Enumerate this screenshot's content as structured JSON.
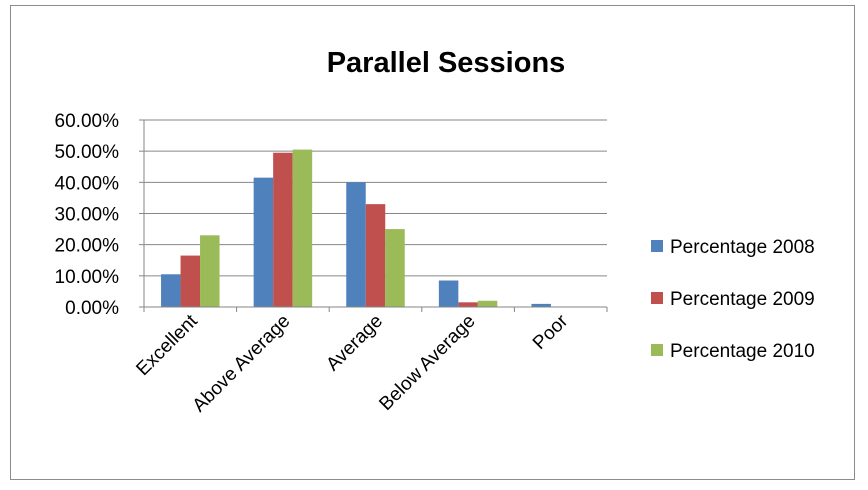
{
  "chart_data": {
    "type": "bar",
    "title": "Parallel Sessions",
    "categories": [
      "Excellent",
      "Above Average",
      "Average",
      "Below Average",
      "Poor"
    ],
    "series": [
      {
        "name": "Percentage 2008",
        "color": "#4f81bd",
        "values": [
          10.5,
          41.5,
          40.0,
          8.5,
          1.0
        ]
      },
      {
        "name": "Percentage 2009",
        "color": "#c0504d",
        "values": [
          16.5,
          49.5,
          33.0,
          1.5,
          0.0
        ]
      },
      {
        "name": "Percentage 2010",
        "color": "#9bbb59",
        "values": [
          23.0,
          50.5,
          25.0,
          2.0,
          0.0
        ]
      }
    ],
    "y_ticks": [
      "0.00%",
      "10.00%",
      "20.00%",
      "30.00%",
      "40.00%",
      "50.00%",
      "60.00%"
    ],
    "ylim": [
      0,
      60
    ],
    "grid": true,
    "legend": "right"
  }
}
